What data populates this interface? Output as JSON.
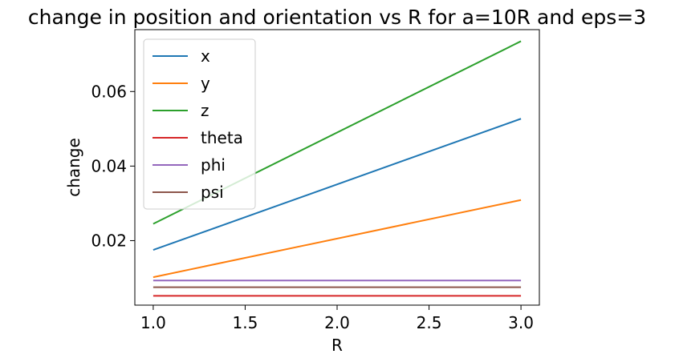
{
  "chart_data": {
    "type": "line",
    "title": "change in position and orientation vs R for a=10R and eps=3",
    "xlabel": "R",
    "ylabel": "change",
    "x": [
      1.0,
      3.0
    ],
    "xlim": [
      0.9,
      3.1
    ],
    "ylim": [
      0.0027,
      0.0766
    ],
    "xticks": [
      1.0,
      1.5,
      2.0,
      2.5,
      3.0
    ],
    "xtick_labels": [
      "1.0",
      "1.5",
      "2.0",
      "2.5",
      "3.0"
    ],
    "yticks": [
      0.02,
      0.04,
      0.06
    ],
    "ytick_labels": [
      "0.02",
      "0.04",
      "0.06"
    ],
    "grid": false,
    "legend_position": "top-left",
    "series": [
      {
        "name": "x",
        "color": "#1f77b4",
        "values": [
          0.0175,
          0.0527
        ]
      },
      {
        "name": "y",
        "color": "#ff7f0e",
        "values": [
          0.0102,
          0.0309
        ]
      },
      {
        "name": "z",
        "color": "#2ca02c",
        "values": [
          0.0245,
          0.0735
        ]
      },
      {
        "name": "theta",
        "color": "#d62728",
        "values": [
          0.0052,
          0.0052
        ]
      },
      {
        "name": "phi",
        "color": "#9467bd",
        "values": [
          0.0093,
          0.0093
        ]
      },
      {
        "name": "psi",
        "color": "#8c564b",
        "values": [
          0.0075,
          0.0075
        ]
      }
    ]
  }
}
